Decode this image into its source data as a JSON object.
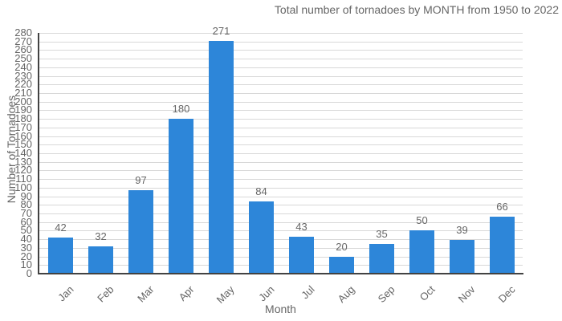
{
  "chart_data": {
    "type": "bar",
    "title": "Total number of tornadoes by MONTH from 1950 to 2022",
    "xlabel": "Month",
    "ylabel": "Number of Tornadoes",
    "categories": [
      "Jan",
      "Feb",
      "Mar",
      "Apr",
      "May",
      "Jun",
      "Jul",
      "Aug",
      "Sep",
      "Oct",
      "Nov",
      "Dec"
    ],
    "values": [
      42,
      32,
      97,
      180,
      271,
      84,
      43,
      20,
      35,
      50,
      39,
      66
    ],
    "ylim": [
      0,
      280
    ],
    "ytick_step": 10,
    "grid": "horizontal",
    "legend": "none",
    "colors": {
      "bar": "#2d86d9",
      "gridline": "#d8d8d8",
      "axis": "#424242",
      "text": "#666666",
      "background": "#ffffff"
    }
  }
}
